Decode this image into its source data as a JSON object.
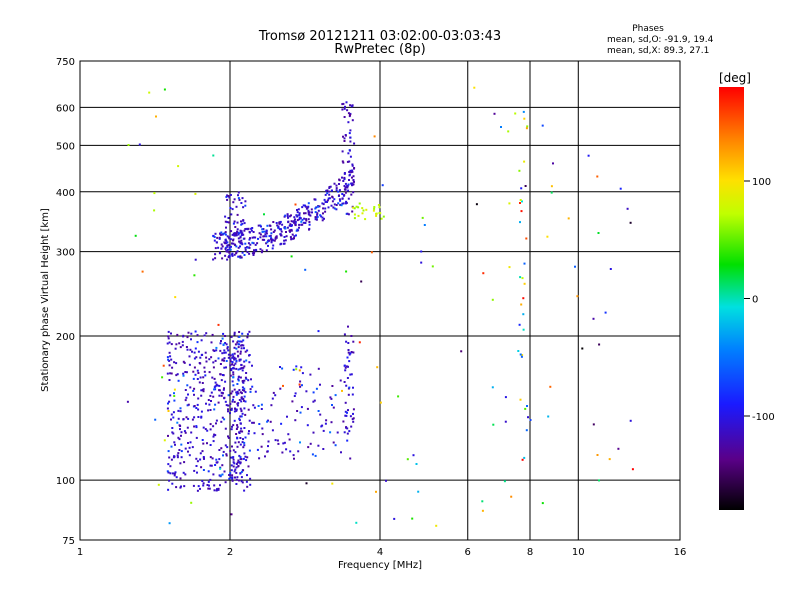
{
  "chart_data": {
    "type": "scatter",
    "title": "Tromsø 20121211 03:02:00-03:03:43",
    "subtitle": "RwPretec (8p)",
    "xlabel": "Frequency [MHz]",
    "ylabel": "Stationary phase Virtual Height [km]",
    "xscale": "log",
    "yscale": "log",
    "xlim": [
      1,
      16
    ],
    "ylim": [
      75,
      750
    ],
    "xticks": [
      1,
      2,
      4,
      6,
      8,
      10,
      16
    ],
    "yticks": [
      75,
      100,
      200,
      300,
      400,
      500,
      600,
      750
    ],
    "grid": true,
    "phases_box": {
      "header": "Phases",
      "line1": "mean, sd,O: -91.9, 19.4",
      "line2": "mean, sd,X:  89.3, 27.1"
    },
    "colorbar": {
      "label": "[deg]",
      "range": [
        -180,
        180
      ],
      "ticks": [
        100,
        0,
        -100
      ],
      "colormap": "rainbow (black-purple-blue-cyan-green-yellow-orange-red)"
    },
    "clusters": [
      {
        "name": "F region trace",
        "freq_range": [
          1.8,
          3.6
        ],
        "height_range": [
          290,
          620
        ],
        "phase_approx": -100,
        "trend": "height rises with frequency"
      },
      {
        "name": "E/F1 region trace",
        "freq_range": [
          1.35,
          3.5
        ],
        "height_range": [
          95,
          210
        ],
        "phase_approx": -110
      },
      {
        "name": "Scattered points",
        "freq_range": [
          1.2,
          14
        ],
        "height_range": [
          80,
          650
        ],
        "phase_approx": "mixed"
      }
    ]
  }
}
